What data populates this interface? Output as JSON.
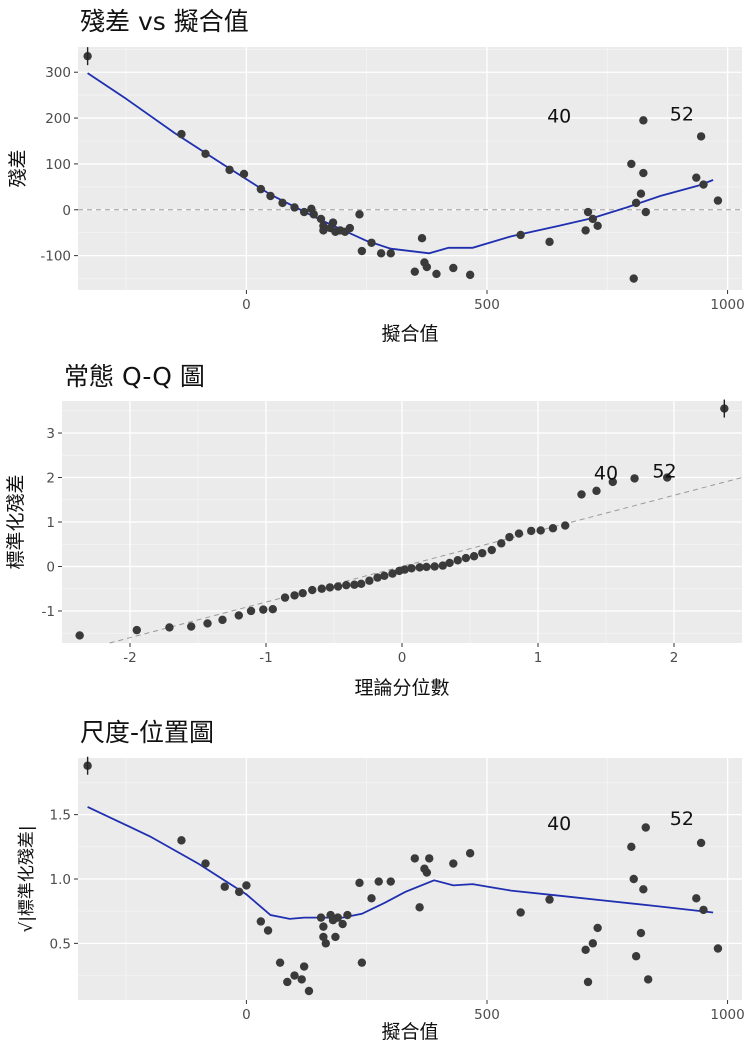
{
  "chart_data": [
    {
      "type": "scatter",
      "title": "殘差 vs 擬合值",
      "xlabel": "擬合值",
      "ylabel": "殘差",
      "xlim": [
        -350,
        1030
      ],
      "ylim": [
        -175,
        355
      ],
      "xticks": [
        0,
        500,
        1000
      ],
      "xtick_labels": [
        "0",
        "500",
        "1000"
      ],
      "yticks": [
        -100,
        0,
        100,
        200,
        300
      ],
      "ytick_labels": [
        "-100",
        "0",
        "100",
        "200",
        "300"
      ],
      "grid": true,
      "reference_line_y": 0,
      "annotations": [
        {
          "text": "40",
          "x": 650,
          "y": 190
        },
        {
          "text": "52",
          "x": 905,
          "y": 195
        }
      ],
      "points": [
        [
          -330,
          335
        ],
        [
          -135,
          165
        ],
        [
          -85,
          122
        ],
        [
          -35,
          87
        ],
        [
          -5,
          78
        ],
        [
          30,
          45
        ],
        [
          50,
          30
        ],
        [
          75,
          15
        ],
        [
          100,
          5
        ],
        [
          120,
          -5
        ],
        [
          135,
          2
        ],
        [
          140,
          -10
        ],
        [
          155,
          -20
        ],
        [
          160,
          -35
        ],
        [
          160,
          -45
        ],
        [
          175,
          -40
        ],
        [
          180,
          -28
        ],
        [
          185,
          -48
        ],
        [
          195,
          -45
        ],
        [
          205,
          -48
        ],
        [
          215,
          -40
        ],
        [
          235,
          -10
        ],
        [
          240,
          -90
        ],
        [
          260,
          -72
        ],
        [
          280,
          -95
        ],
        [
          300,
          -95
        ],
        [
          350,
          -135
        ],
        [
          365,
          -62
        ],
        [
          370,
          -115
        ],
        [
          375,
          -125
        ],
        [
          395,
          -140
        ],
        [
          430,
          -127
        ],
        [
          465,
          -142
        ],
        [
          570,
          -55
        ],
        [
          630,
          -70
        ],
        [
          705,
          -45
        ],
        [
          710,
          -5
        ],
        [
          720,
          -20
        ],
        [
          730,
          -35
        ],
        [
          800,
          100
        ],
        [
          805,
          -150
        ],
        [
          810,
          15
        ],
        [
          820,
          35
        ],
        [
          825,
          195
        ],
        [
          825,
          80
        ],
        [
          830,
          -5
        ],
        [
          935,
          70
        ],
        [
          945,
          160
        ],
        [
          950,
          55
        ],
        [
          980,
          20
        ]
      ],
      "smooth": [
        [
          -330,
          298
        ],
        [
          -250,
          242
        ],
        [
          -150,
          168
        ],
        [
          -50,
          100
        ],
        [
          50,
          33
        ],
        [
          150,
          -20
        ],
        [
          250,
          -68
        ],
        [
          300,
          -85
        ],
        [
          380,
          -95
        ],
        [
          420,
          -83
        ],
        [
          470,
          -83
        ],
        [
          550,
          -58
        ],
        [
          650,
          -35
        ],
        [
          720,
          -18
        ],
        [
          790,
          5
        ],
        [
          860,
          30
        ],
        [
          940,
          53
        ],
        [
          970,
          65
        ]
      ]
    },
    {
      "type": "scatter",
      "title": "常態 Q-Q 圖",
      "xlabel": "理論分位數",
      "ylabel": "標準化殘差",
      "xlim": [
        -2.5,
        2.5
      ],
      "ylim": [
        -1.72,
        3.72
      ],
      "xticks": [
        -2,
        -1,
        0,
        1,
        2
      ],
      "xtick_labels": [
        "-2",
        "-1",
        "0",
        "1",
        "2"
      ],
      "yticks": [
        -1,
        0,
        1,
        2,
        3
      ],
      "ytick_labels": [
        "-1",
        "0",
        "1",
        "2",
        "3"
      ],
      "grid": true,
      "reference_line": {
        "slope": 0.8,
        "intercept": 0
      },
      "annotations": [
        {
          "text": "40",
          "x": 1.5,
          "y": 1.95
        },
        {
          "text": "52",
          "x": 1.93,
          "y": 2.0
        }
      ],
      "points": [
        [
          -2.37,
          -1.55
        ],
        [
          -1.95,
          -1.43
        ],
        [
          -1.71,
          -1.37
        ],
        [
          -1.55,
          -1.35
        ],
        [
          -1.43,
          -1.28
        ],
        [
          -1.32,
          -1.2
        ],
        [
          -1.2,
          -1.1
        ],
        [
          -1.11,
          -1.0
        ],
        [
          -1.02,
          -0.97
        ],
        [
          -0.95,
          -0.96
        ],
        [
          -0.86,
          -0.7
        ],
        [
          -0.79,
          -0.65
        ],
        [
          -0.73,
          -0.6
        ],
        [
          -0.66,
          -0.53
        ],
        [
          -0.59,
          -0.5
        ],
        [
          -0.53,
          -0.47
        ],
        [
          -0.47,
          -0.45
        ],
        [
          -0.41,
          -0.42
        ],
        [
          -0.35,
          -0.41
        ],
        [
          -0.3,
          -0.39
        ],
        [
          -0.24,
          -0.32
        ],
        [
          -0.18,
          -0.25
        ],
        [
          -0.13,
          -0.21
        ],
        [
          -0.07,
          -0.16
        ],
        [
          -0.02,
          -0.1
        ],
        [
          0.02,
          -0.07
        ],
        [
          0.07,
          -0.04
        ],
        [
          0.13,
          -0.02
        ],
        [
          0.18,
          -0.01
        ],
        [
          0.24,
          0.0
        ],
        [
          0.3,
          0.02
        ],
        [
          0.35,
          0.08
        ],
        [
          0.41,
          0.14
        ],
        [
          0.47,
          0.19
        ],
        [
          0.53,
          0.23
        ],
        [
          0.59,
          0.3
        ],
        [
          0.66,
          0.37
        ],
        [
          0.73,
          0.52
        ],
        [
          0.79,
          0.66
        ],
        [
          0.86,
          0.74
        ],
        [
          0.95,
          0.8
        ],
        [
          1.02,
          0.81
        ],
        [
          1.11,
          0.86
        ],
        [
          1.2,
          0.92
        ],
        [
          1.32,
          1.62
        ],
        [
          1.43,
          1.7
        ],
        [
          1.55,
          1.9
        ],
        [
          1.71,
          1.98
        ],
        [
          1.95,
          2.0
        ],
        [
          2.37,
          3.55
        ]
      ]
    },
    {
      "type": "scatter",
      "title": "尺度-位置圖",
      "xlabel": "擬合值",
      "ylabel": "√|標準化殘差|",
      "xlim": [
        -350,
        1030
      ],
      "ylim": [
        0.06,
        1.94
      ],
      "xticks": [
        0,
        500,
        1000
      ],
      "xtick_labels": [
        "0",
        "500",
        "1000"
      ],
      "yticks": [
        0.5,
        1.0,
        1.5
      ],
      "ytick_labels": [
        "0.5",
        "1.0",
        "1.5"
      ],
      "grid": true,
      "annotations": [
        {
          "text": "40",
          "x": 650,
          "y": 1.38
        },
        {
          "text": "52",
          "x": 905,
          "y": 1.42
        }
      ],
      "points": [
        [
          -330,
          1.88
        ],
        [
          -135,
          1.3
        ],
        [
          -85,
          1.12
        ],
        [
          -45,
          0.94
        ],
        [
          -15,
          0.9
        ],
        [
          0,
          0.95
        ],
        [
          30,
          0.67
        ],
        [
          45,
          0.6
        ],
        [
          70,
          0.35
        ],
        [
          85,
          0.2
        ],
        [
          100,
          0.25
        ],
        [
          115,
          0.22
        ],
        [
          120,
          0.32
        ],
        [
          130,
          0.13
        ],
        [
          155,
          0.7
        ],
        [
          160,
          0.63
        ],
        [
          160,
          0.55
        ],
        [
          165,
          0.5
        ],
        [
          175,
          0.72
        ],
        [
          180,
          0.68
        ],
        [
          185,
          0.55
        ],
        [
          190,
          0.7
        ],
        [
          200,
          0.65
        ],
        [
          210,
          0.72
        ],
        [
          235,
          0.97
        ],
        [
          240,
          0.35
        ],
        [
          260,
          0.85
        ],
        [
          275,
          0.98
        ],
        [
          300,
          0.98
        ],
        [
          350,
          1.16
        ],
        [
          360,
          0.78
        ],
        [
          370,
          1.08
        ],
        [
          375,
          1.05
        ],
        [
          380,
          1.16
        ],
        [
          430,
          1.12
        ],
        [
          465,
          1.2
        ],
        [
          570,
          0.74
        ],
        [
          630,
          0.84
        ],
        [
          705,
          0.45
        ],
        [
          710,
          0.2
        ],
        [
          720,
          0.5
        ],
        [
          730,
          0.62
        ],
        [
          800,
          1.25
        ],
        [
          805,
          1.0
        ],
        [
          810,
          0.4
        ],
        [
          820,
          0.58
        ],
        [
          825,
          0.92
        ],
        [
          830,
          1.4
        ],
        [
          835,
          0.22
        ],
        [
          935,
          0.85
        ],
        [
          945,
          1.28
        ],
        [
          950,
          0.76
        ],
        [
          980,
          0.46
        ]
      ],
      "smooth": [
        [
          -330,
          1.56
        ],
        [
          -200,
          1.33
        ],
        [
          -100,
          1.12
        ],
        [
          0,
          0.88
        ],
        [
          50,
          0.72
        ],
        [
          90,
          0.69
        ],
        [
          120,
          0.7
        ],
        [
          200,
          0.7
        ],
        [
          240,
          0.73
        ],
        [
          290,
          0.82
        ],
        [
          330,
          0.9
        ],
        [
          390,
          0.99
        ],
        [
          430,
          0.95
        ],
        [
          470,
          0.96
        ],
        [
          550,
          0.91
        ],
        [
          650,
          0.87
        ],
        [
          750,
          0.83
        ],
        [
          850,
          0.79
        ],
        [
          970,
          0.74
        ]
      ]
    }
  ]
}
